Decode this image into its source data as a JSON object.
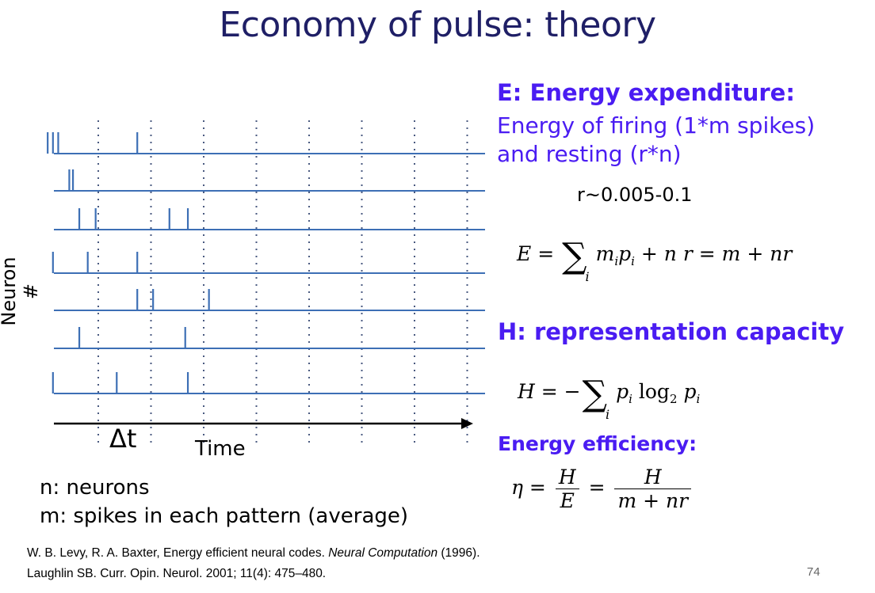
{
  "title": "Economy of pulse: theory",
  "diagram": {
    "y_axis_label": "Neuron #",
    "x_axis_label": "Time",
    "bin_label": "Δt",
    "time_bins": 8,
    "neurons": [
      {
        "spikes": [
          0.04,
          0.14,
          0.24,
          1.74
        ]
      },
      {
        "spikes": [
          0.45,
          0.52
        ]
      },
      {
        "spikes": [
          0.64,
          0.95,
          2.35,
          2.7
        ]
      },
      {
        "spikes": [
          0.14,
          0.8,
          1.74
        ]
      },
      {
        "spikes": [
          1.74,
          2.04,
          3.1
        ]
      },
      {
        "spikes": [
          0.64,
          2.65
        ]
      },
      {
        "spikes": [
          0.14,
          1.35,
          2.7
        ]
      }
    ]
  },
  "definitions": {
    "n": "n: neurons",
    "m": "m: spikes in each pattern (average)"
  },
  "energy": {
    "heading": "E: Energy expenditure:",
    "line1": "Energy of firing (1*m spikes)",
    "line2": "and resting (r*n)",
    "r_range": "r~0.005-0.1"
  },
  "capacity": {
    "heading": "H: representation capacity"
  },
  "efficiency": {
    "heading": "Energy efficiency:"
  },
  "references": {
    "ref1_a": "W. B. Levy, R. A. Baxter, Energy efficient neural codes. ",
    "ref1_journal": "Neural Computation",
    "ref1_b": "  (1996).",
    "ref2": "Laughlin SB. Curr. Opin. Neurol. 2001; 11(4): 475–480."
  },
  "page_number": "74",
  "colors": {
    "title": "#1f1f66",
    "accent": "#4a1cf2",
    "raster": "#3d6fb5"
  }
}
